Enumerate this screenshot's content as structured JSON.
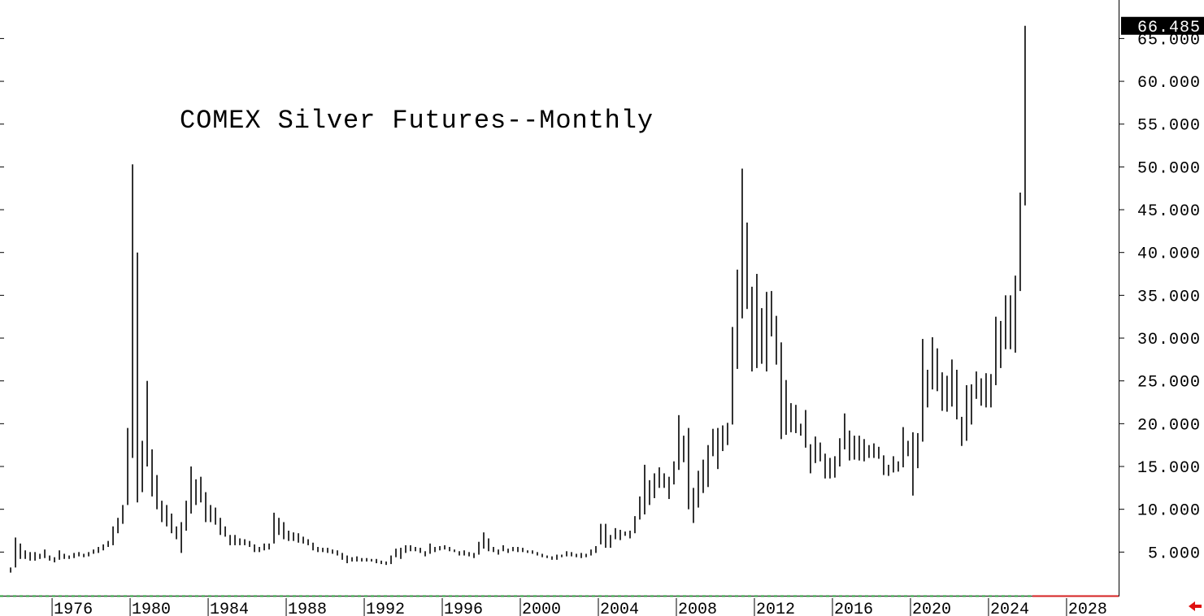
{
  "chart_data": {
    "type": "highlow",
    "title": "COMEX Silver Futures--Monthly",
    "last_value": 66.485,
    "xlim": [
      1973.33,
      2030.67
    ],
    "xticks": [
      1976,
      1980,
      1984,
      1988,
      1992,
      1996,
      2000,
      2004,
      2008,
      2012,
      2016,
      2020,
      2024,
      2028
    ],
    "ylim": [
      0,
      69.5
    ],
    "yticks": [
      {
        "value": 5,
        "label": "5.000"
      },
      {
        "value": 10,
        "label": "10.000"
      },
      {
        "value": 15,
        "label": "15.000"
      },
      {
        "value": 20,
        "label": "20.000"
      },
      {
        "value": 25,
        "label": "25.000"
      },
      {
        "value": 30,
        "label": "30.000"
      },
      {
        "value": 35,
        "label": "35.000"
      },
      {
        "value": 40,
        "label": "40.000"
      },
      {
        "value": 45,
        "label": "45.000"
      },
      {
        "value": 50,
        "label": "50.000"
      },
      {
        "value": 55,
        "label": "55.000"
      },
      {
        "value": 60,
        "label": "60.000"
      },
      {
        "value": 65,
        "label": "65.000"
      }
    ],
    "color": "#000000",
    "x": [
      1973.875,
      1974.125,
      1974.375,
      1974.625,
      1974.875,
      1975.125,
      1975.375,
      1975.625,
      1975.875,
      1976.125,
      1976.375,
      1976.625,
      1976.875,
      1977.125,
      1977.375,
      1977.625,
      1977.875,
      1978.125,
      1978.375,
      1978.625,
      1978.875,
      1979.125,
      1979.375,
      1979.625,
      1979.875,
      1980.125,
      1980.375,
      1980.625,
      1980.875,
      1981.125,
      1981.375,
      1981.625,
      1981.875,
      1982.125,
      1982.375,
      1982.625,
      1982.875,
      1983.125,
      1983.375,
      1983.625,
      1983.875,
      1984.125,
      1984.375,
      1984.625,
      1984.875,
      1985.125,
      1985.375,
      1985.625,
      1985.875,
      1986.125,
      1986.375,
      1986.625,
      1986.875,
      1987.125,
      1987.375,
      1987.625,
      1987.875,
      1988.125,
      1988.375,
      1988.625,
      1988.875,
      1989.125,
      1989.375,
      1989.625,
      1989.875,
      1990.125,
      1990.375,
      1990.625,
      1990.875,
      1991.125,
      1991.375,
      1991.625,
      1991.875,
      1992.125,
      1992.375,
      1992.625,
      1992.875,
      1993.125,
      1993.375,
      1993.625,
      1993.875,
      1994.125,
      1994.375,
      1994.625,
      1994.875,
      1995.125,
      1995.375,
      1995.625,
      1995.875,
      1996.125,
      1996.375,
      1996.625,
      1996.875,
      1997.125,
      1997.375,
      1997.625,
      1997.875,
      1998.125,
      1998.375,
      1998.625,
      1998.875,
      1999.125,
      1999.375,
      1999.625,
      1999.875,
      2000.125,
      2000.375,
      2000.625,
      2000.875,
      2001.125,
      2001.375,
      2001.625,
      2001.875,
      2002.125,
      2002.375,
      2002.625,
      2002.875,
      2003.125,
      2003.375,
      2003.625,
      2003.875,
      2004.125,
      2004.375,
      2004.625,
      2004.875,
      2005.125,
      2005.375,
      2005.625,
      2005.875,
      2006.125,
      2006.375,
      2006.625,
      2006.875,
      2007.125,
      2007.375,
      2007.625,
      2007.875,
      2008.125,
      2008.375,
      2008.625,
      2008.875,
      2009.125,
      2009.375,
      2009.625,
      2009.875,
      2010.125,
      2010.375,
      2010.625,
      2010.875,
      2011.125,
      2011.375,
      2011.625,
      2011.875,
      2012.125,
      2012.375,
      2012.625,
      2012.875,
      2013.125,
      2013.375,
      2013.625,
      2013.875,
      2014.125,
      2014.375,
      2014.625,
      2014.875,
      2015.125,
      2015.375,
      2015.625,
      2015.875,
      2016.125,
      2016.375,
      2016.625,
      2016.875,
      2017.125,
      2017.375,
      2017.625,
      2017.875,
      2018.125,
      2018.375,
      2018.625,
      2018.875,
      2019.125,
      2019.375,
      2019.625,
      2019.875,
      2020.125,
      2020.375,
      2020.625,
      2020.875,
      2021.125,
      2021.375,
      2021.625,
      2021.875,
      2022.125,
      2022.375,
      2022.625,
      2022.875,
      2023.125,
      2023.375,
      2023.625,
      2023.875,
      2024.125,
      2024.375,
      2024.625,
      2024.875,
      2025.125,
      2025.375,
      2025.625,
      2025.875
    ],
    "high": [
      3.2,
      6.7,
      6.0,
      5.2,
      5.0,
      5.0,
      4.8,
      5.3,
      4.6,
      4.4,
      5.2,
      4.8,
      4.6,
      4.9,
      5.0,
      4.8,
      5.0,
      5.3,
      5.6,
      5.9,
      6.3,
      8.0,
      9.0,
      10.5,
      19.5,
      50.3,
      40,
      18,
      25,
      17,
      14,
      11,
      10.5,
      9.5,
      8,
      8.5,
      11,
      15,
      13.5,
      13.8,
      12,
      10.5,
      10.2,
      9,
      8,
      7,
      7,
      6.6,
      6.5,
      6.3,
      5.9,
      5.6,
      6,
      6,
      9.6,
      9,
      8.5,
      7.5,
      7.3,
      7.2,
      6.8,
      6.5,
      6.1,
      5.6,
      5.5,
      5.5,
      5.3,
      5.2,
      4.9,
      4.6,
      4.4,
      4.5,
      4.3,
      4.3,
      4.2,
      4.2,
      4.0,
      3.9,
      4.6,
      5.4,
      5.5,
      5.8,
      5.8,
      5.6,
      5.5,
      5.1,
      6.0,
      5.6,
      5.7,
      5.8,
      5.6,
      5.3,
      5.1,
      5.2,
      5.0,
      4.9,
      6.2,
      7.3,
      6.6,
      5.6,
      5.3,
      5.8,
      5.4,
      5.6,
      5.6,
      5.5,
      5.2,
      5.2,
      5.0,
      4.8,
      4.6,
      4.5,
      4.7,
      4.7,
      5.1,
      5.0,
      4.8,
      4.9,
      4.8,
      5.3,
      5.7,
      8.3,
      8.3,
      7.0,
      7.8,
      7.6,
      7.4,
      7.5,
      9.2,
      11.5,
      15.2,
      13.4,
      14.2,
      14.9,
      14.2,
      13.8,
      15.6,
      21.0,
      18.6,
      19.5,
      12.5,
      14.5,
      15.8,
      17.5,
      19.4,
      19.5,
      19.8,
      20.1,
      31.3,
      38.0,
      49.8,
      43.5,
      36.0,
      37.5,
      33.5,
      35.4,
      35.5,
      32.6,
      29.5,
      25.1,
      22.4,
      22.2,
      20.0,
      21.6,
      17.6,
      18.5,
      17.8,
      16.5,
      16.0,
      16.2,
      18.3,
      21.2,
      19.2,
      18.6,
      18.6,
      18.2,
      17.5,
      17.7,
      17.3,
      16.3,
      15.2,
      16.2,
      15.6,
      19.6,
      18.0,
      19.0,
      18.9,
      29.9,
      26.3,
      30.1,
      28.8,
      26.0,
      25.6,
      27.5,
      26.3,
      20.8,
      24.5,
      24.6,
      26.1,
      25.3,
      25.9,
      25.8,
      32.5,
      32.0,
      35.0,
      35.0,
      37.3,
      47.0,
      66.485
    ],
    "low": [
      2.6,
      3.2,
      4.2,
      4.2,
      4.0,
      4.0,
      4.2,
      4.3,
      4.0,
      3.8,
      4.1,
      4.2,
      4.2,
      4.3,
      4.5,
      4.4,
      4.5,
      4.8,
      4.9,
      5.2,
      5.6,
      5.8,
      7.2,
      8.3,
      10.5,
      16,
      10.8,
      12,
      15,
      11.5,
      10,
      8.5,
      8,
      7.2,
      6.5,
      4.9,
      7.5,
      9.5,
      10.5,
      10.8,
      8.5,
      8.5,
      8.2,
      7,
      6.8,
      5.8,
      5.8,
      5.8,
      5.8,
      5.6,
      5,
      5,
      5.2,
      5.3,
      6,
      7,
      6.5,
      6.3,
      6.3,
      6.1,
      6,
      5.8,
      5.2,
      5,
      5,
      4.9,
      4.8,
      4.6,
      4.1,
      3.7,
      3.9,
      3.9,
      3.9,
      3.9,
      3.9,
      3.7,
      3.6,
      3.5,
      3.6,
      4.4,
      4.2,
      4.9,
      5.1,
      5.1,
      4.9,
      4.5,
      4.8,
      5.0,
      5.2,
      5.3,
      5.1,
      5.0,
      4.6,
      4.6,
      4.5,
      4.3,
      4.7,
      5.4,
      5.1,
      5.0,
      4.7,
      5.1,
      4.9,
      5.1,
      5.0,
      5.0,
      4.9,
      4.8,
      4.6,
      4.4,
      4.3,
      4.1,
      4.1,
      4.4,
      4.5,
      4.5,
      4.4,
      4.3,
      4.4,
      4.6,
      4.9,
      5.9,
      5.5,
      5.5,
      6.5,
      6.4,
      6.9,
      6.6,
      7.2,
      8.8,
      9.4,
      10.5,
      11.3,
      12.5,
      12.5,
      11.2,
      12.9,
      14.6,
      15.5,
      10.0,
      8.4,
      10.2,
      11.9,
      12.6,
      16.2,
      14.7,
      16.8,
      17.5,
      19.9,
      26.4,
      32.3,
      33.4,
      26.1,
      26.5,
      27.0,
      26.1,
      30.2,
      26.9,
      18.2,
      18.7,
      19.0,
      18.9,
      18.6,
      17.2,
      14.2,
      15.4,
      15.6,
      13.6,
      13.6,
      13.7,
      15.0,
      17.0,
      15.7,
      15.8,
      15.7,
      15.6,
      16.0,
      16.0,
      15.9,
      14.0,
      13.9,
      14.3,
      14.4,
      14.9,
      16.2,
      11.6,
      14.8,
      17.9,
      21.9,
      24.0,
      23.8,
      21.5,
      21.4,
      22.0,
      20.5,
      17.4,
      18.0,
      19.9,
      22.9,
      22.1,
      21.9,
      21.9,
      24.5,
      26.5,
      28.7,
      28.7,
      28.3,
      35.5,
      45.5
    ]
  }
}
